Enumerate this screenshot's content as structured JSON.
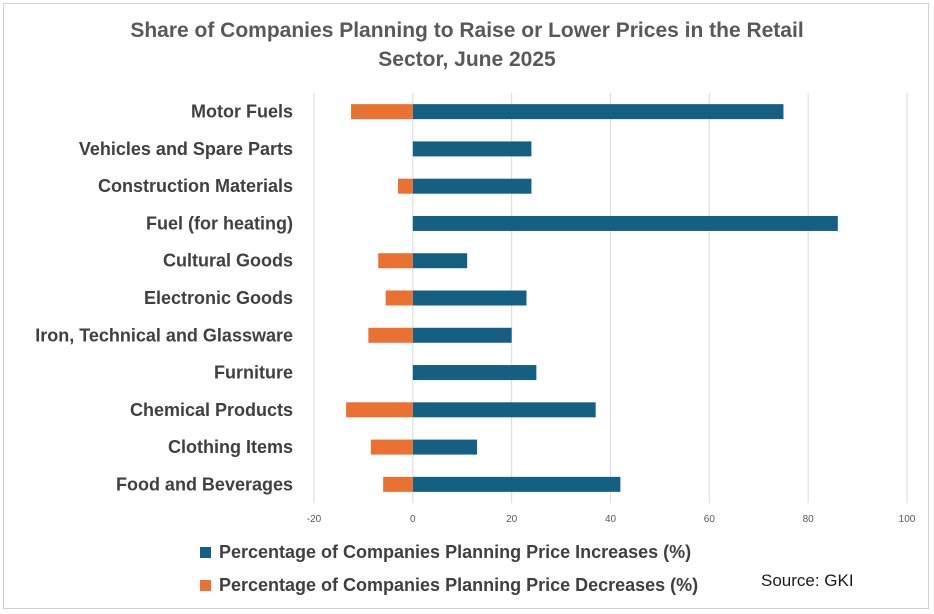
{
  "chart_data": {
    "type": "bar",
    "orientation": "horizontal",
    "title_lines": [
      "Share of Companies Planning to Raise or Lower Prices in the Retail",
      "Sector, June 2025"
    ],
    "categories": [
      "Motor Fuels",
      "Vehicles and Spare Parts",
      "Construction Materials",
      "Fuel (for heating)",
      "Cultural Goods",
      "Electronic Goods",
      "Iron, Technical and Glassware",
      "Furniture",
      "Chemical Products",
      "Clothing Items",
      "Food and Beverages"
    ],
    "series": [
      {
        "name": "Percentage of Companies Planning Price Increases (%)",
        "color": "#156082",
        "values": [
          75,
          24,
          24,
          86,
          11,
          23,
          20,
          25,
          37,
          13,
          42
        ]
      },
      {
        "name": "Percentage of Companies Planning Price Decreases (%)",
        "color": "#E97132",
        "values": [
          -12.5,
          null,
          -3,
          null,
          -7,
          -5.5,
          -9,
          null,
          -13.5,
          -8.5,
          -6
        ]
      }
    ],
    "xlim": [
      -20,
      100
    ],
    "xticks": [
      -20,
      0,
      20,
      40,
      60,
      80,
      100
    ],
    "grid": "vertical",
    "legend_position": "bottom",
    "source": "Source: GKI"
  }
}
